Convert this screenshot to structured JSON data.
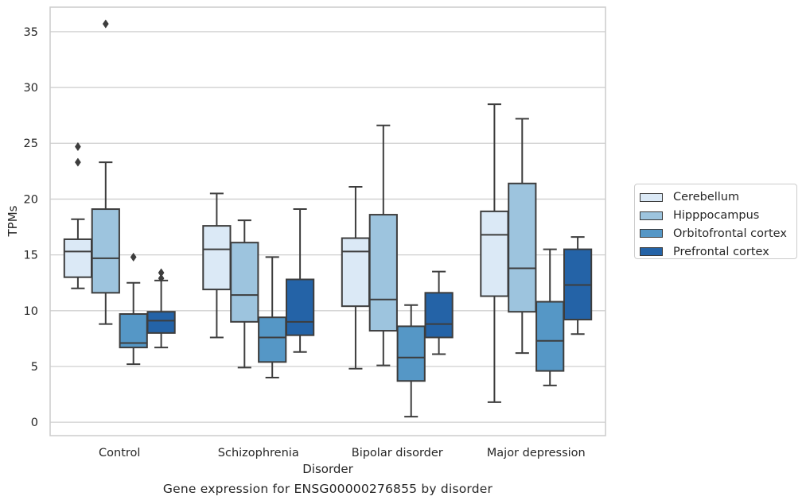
{
  "caption": "Gene expression for ENSG00000276855 by disorder",
  "chart_data": {
    "type": "box",
    "title": "",
    "xlabel": "Disorder",
    "ylabel": "TPMs",
    "ylim": [
      -1.2,
      37.2
    ],
    "yticks": [
      0,
      5,
      10,
      15,
      20,
      25,
      30,
      35
    ],
    "grid": "horizontal",
    "legend_position": "right",
    "categories": [
      "Control",
      "Schizophrenia",
      "Bipolar disorder",
      "Major depression"
    ],
    "series": [
      {
        "name": "Cerebellum",
        "color": "#dbe9f6",
        "boxes": [
          {
            "whisker_low": 12.0,
            "q1": 13.0,
            "median": 15.3,
            "q3": 16.4,
            "whisker_high": 18.2,
            "outliers": []
          },
          {
            "whisker_low": 7.6,
            "q1": 11.9,
            "median": 15.5,
            "q3": 17.6,
            "whisker_high": 20.5,
            "outliers": []
          },
          {
            "whisker_low": 4.8,
            "q1": 10.4,
            "median": 15.3,
            "q3": 16.5,
            "whisker_high": 21.1,
            "outliers": []
          },
          {
            "whisker_low": 1.8,
            "q1": 11.3,
            "median": 16.8,
            "q3": 18.9,
            "whisker_high": 28.5,
            "outliers": []
          }
        ]
      },
      {
        "name": "Hipppocampus",
        "color": "#9dc4de",
        "boxes": [
          {
            "whisker_low": 8.8,
            "q1": 11.6,
            "median": 14.7,
            "q3": 19.1,
            "whisker_high": 23.3,
            "outliers": [
              35.7
            ]
          },
          {
            "whisker_low": 4.9,
            "q1": 9.0,
            "median": 11.4,
            "q3": 16.1,
            "whisker_high": 18.1,
            "outliers": []
          },
          {
            "whisker_low": 5.1,
            "q1": 8.2,
            "median": 11.0,
            "q3": 18.6,
            "whisker_high": 26.6,
            "outliers": []
          },
          {
            "whisker_low": 6.2,
            "q1": 9.9,
            "median": 13.8,
            "q3": 21.4,
            "whisker_high": 27.2,
            "outliers": []
          }
        ]
      },
      {
        "name": "Orbitofrontal cortex",
        "color": "#5597c6",
        "boxes": [
          {
            "whisker_low": 5.2,
            "q1": 6.7,
            "median": 7.1,
            "q3": 9.7,
            "whisker_high": 12.5,
            "outliers": [
              14.8
            ]
          },
          {
            "whisker_low": 4.0,
            "q1": 5.4,
            "median": 7.6,
            "q3": 9.4,
            "whisker_high": 14.8,
            "outliers": []
          },
          {
            "whisker_low": 0.5,
            "q1": 3.7,
            "median": 5.8,
            "q3": 8.6,
            "whisker_high": 10.5,
            "outliers": []
          },
          {
            "whisker_low": 3.3,
            "q1": 4.6,
            "median": 7.3,
            "q3": 10.8,
            "whisker_high": 15.5,
            "outliers": []
          }
        ]
      },
      {
        "name": "Prefrontal cortex",
        "color": "#2463a7",
        "boxes": [
          {
            "whisker_low": 6.7,
            "q1": 8.0,
            "median": 9.1,
            "q3": 9.9,
            "whisker_high": 12.7,
            "outliers": [
              12.9,
              13.4
            ]
          },
          {
            "whisker_low": 6.3,
            "q1": 7.8,
            "median": 9.0,
            "q3": 12.8,
            "whisker_high": 19.1,
            "outliers": []
          },
          {
            "whisker_low": 6.1,
            "q1": 7.6,
            "median": 8.8,
            "q3": 11.6,
            "whisker_high": 13.5,
            "outliers": []
          },
          {
            "whisker_low": 7.9,
            "q1": 9.2,
            "median": 12.3,
            "q3": 15.5,
            "whisker_high": 16.6,
            "outliers": []
          }
        ]
      }
    ]
  },
  "extra_outliers": [
    {
      "category_index": 0,
      "series_index": 0,
      "values": [
        24.7,
        23.3
      ]
    }
  ]
}
